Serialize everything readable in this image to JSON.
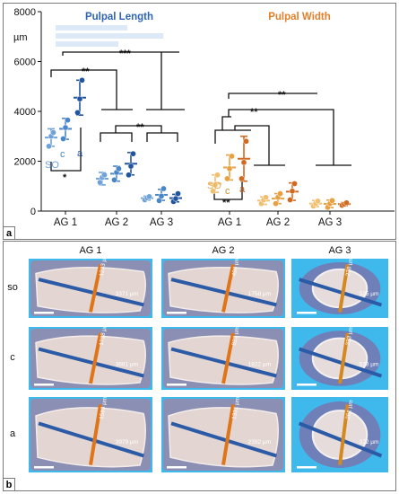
{
  "panel_a_letter": "a",
  "panel_b_letter": "b",
  "chart_data": {
    "type": "scatter",
    "yunit": "µm",
    "ylim": [
      0,
      8000
    ],
    "yticks": [
      0,
      2000,
      4000,
      6000,
      8000
    ],
    "ytick_labels": [
      "0",
      "2000",
      "4000",
      "6000",
      "8000"
    ],
    "categories": [
      "AG 1",
      "AG 2",
      "AG 3",
      "AG 1",
      "AG 2",
      "AG 3"
    ],
    "panels": [
      {
        "title": "Pulpal Length",
        "color": "#2e63b5",
        "groups": [
          {
            "category": "AG 1",
            "level": "so",
            "mean": 2950,
            "sd": 350,
            "points": [
              2600,
              3000,
              3150
            ],
            "color": "#6fa3d8"
          },
          {
            "category": "AG 1",
            "level": "c",
            "mean": 3300,
            "sd": 420,
            "points": [
              2900,
              3350,
              3650
            ],
            "color": "#4a86c8"
          },
          {
            "category": "AG 1",
            "level": "a",
            "mean": 4550,
            "sd": 700,
            "points": [
              3950,
              4500,
              5250
            ],
            "color": "#2255a0"
          },
          {
            "category": "AG 2",
            "level": "so",
            "mean": 1300,
            "sd": 250,
            "points": [
              1150,
              1350,
              1450
            ],
            "color": "#6fa3d8"
          },
          {
            "category": "AG 2",
            "level": "c",
            "mean": 1500,
            "sd": 300,
            "points": [
              1250,
              1550,
              1700
            ],
            "color": "#4a86c8"
          },
          {
            "category": "AG 2",
            "level": "a",
            "mean": 1900,
            "sd": 450,
            "points": [
              1450,
              1800,
              2300
            ],
            "color": "#2255a0"
          },
          {
            "category": "AG 3",
            "level": "so",
            "mean": 520,
            "sd": 80,
            "points": [
              450,
              530,
              580
            ],
            "color": "#6fa3d8"
          },
          {
            "category": "AG 3",
            "level": "c",
            "mean": 650,
            "sd": 220,
            "points": [
              420,
              600,
              900
            ],
            "color": "#4a86c8"
          },
          {
            "category": "AG 3",
            "level": "a",
            "mean": 520,
            "sd": 150,
            "points": [
              380,
              500,
              700
            ],
            "color": "#2255a0"
          }
        ]
      },
      {
        "title": "Pulpal Width",
        "color": "#e27f2a",
        "groups": [
          {
            "category": "AG 1",
            "level": "so",
            "mean": 1100,
            "sd": 350,
            "points": [
              800,
              1050,
              1450
            ],
            "color": "#f0c070"
          },
          {
            "category": "AG 1",
            "level": "c",
            "mean": 1750,
            "sd": 500,
            "points": [
              1300,
              1700,
              2200
            ],
            "color": "#e8a040"
          },
          {
            "category": "AG 1",
            "level": "a",
            "mean": 2100,
            "sd": 900,
            "points": [
              1300,
              1950,
              2800
            ],
            "color": "#d2691e"
          },
          {
            "category": "AG 2",
            "level": "so",
            "mean": 420,
            "sd": 150,
            "points": [
              300,
              450,
              550
            ],
            "color": "#f0c070"
          },
          {
            "category": "AG 2",
            "level": "c",
            "mean": 500,
            "sd": 200,
            "points": [
              300,
              550,
              700
            ],
            "color": "#e8a040"
          },
          {
            "category": "AG 2",
            "level": "a",
            "mean": 780,
            "sd": 350,
            "points": [
              450,
              800,
              1100
            ],
            "color": "#d2691e"
          },
          {
            "category": "AG 3",
            "level": "so",
            "mean": 300,
            "sd": 120,
            "points": [
              200,
              300,
              400
            ],
            "color": "#f0c070"
          },
          {
            "category": "AG 3",
            "level": "c",
            "mean": 290,
            "sd": 150,
            "points": [
              150,
              300,
              420
            ],
            "color": "#e8a040"
          },
          {
            "category": "AG 3",
            "level": "a",
            "mean": 280,
            "sd": 60,
            "points": [
              230,
              280,
              330
            ],
            "color": "#d2691e"
          }
        ]
      }
    ],
    "group_labels": [
      "SO",
      "c",
      "a"
    ],
    "significance": [
      "*",
      "**",
      "***",
      "**",
      "**",
      "**",
      "**"
    ]
  },
  "micrographs": {
    "columns": [
      "AG 1",
      "AG 2",
      "AG 3"
    ],
    "rows": [
      "so",
      "c",
      "a"
    ],
    "measurements": [
      [
        "3371 µm",
        "1758 µm",
        "525 µm"
      ],
      [
        "3681 µm",
        "1822 µm",
        "573 µm"
      ],
      [
        "3979 µm",
        "2392 µm",
        "372 µm"
      ]
    ],
    "measurements_width": [
      [
        "1233 µm",
        "498 µm",
        "278 µm"
      ],
      [
        "1738 µm",
        "823 µm",
        "333 µm"
      ],
      [
        "1593 µm",
        "1331 µm",
        "261 µm"
      ]
    ]
  }
}
